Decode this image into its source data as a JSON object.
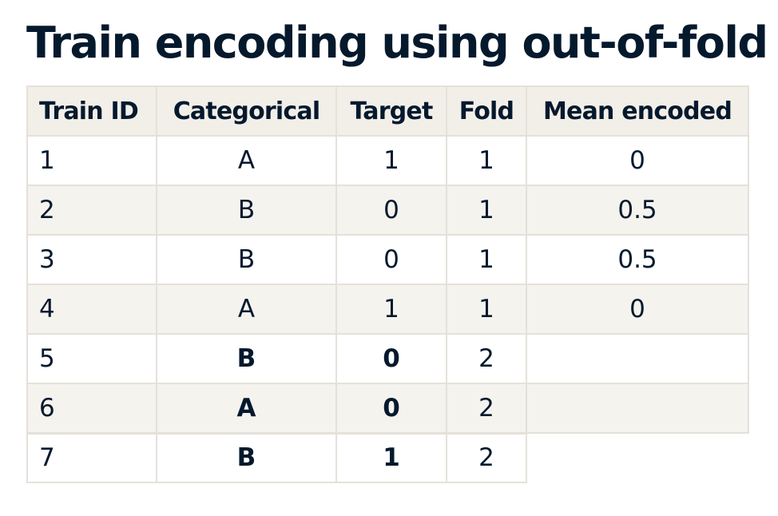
{
  "title": "Train encoding using out-of-fold",
  "table": {
    "headers": [
      "Train ID",
      "Categorical",
      "Target",
      "Fold",
      "Mean encoded"
    ],
    "rows": [
      {
        "train_id": "1",
        "categorical": "A",
        "target": "1",
        "fold": "1",
        "mean_encoded": "0"
      },
      {
        "train_id": "2",
        "categorical": "B",
        "target": "0",
        "fold": "1",
        "mean_encoded": "0.5"
      },
      {
        "train_id": "3",
        "categorical": "B",
        "target": "0",
        "fold": "1",
        "mean_encoded": "0.5"
      },
      {
        "train_id": "4",
        "categorical": "A",
        "target": "1",
        "fold": "1",
        "mean_encoded": "0"
      },
      {
        "train_id": "5",
        "categorical": "B",
        "target": "0",
        "fold": "2",
        "mean_encoded": ""
      },
      {
        "train_id": "6",
        "categorical": "A",
        "target": "0",
        "fold": "2",
        "mean_encoded": ""
      },
      {
        "train_id": "7",
        "categorical": "B",
        "target": "1",
        "fold": "2",
        "mean_encoded": ""
      }
    ],
    "highlighted_rows_bold": [
      "5",
      "6",
      "7"
    ]
  },
  "colors": {
    "text": "#05192d",
    "header_bg": "#f2efe9",
    "stripe_bg": "#f5f3ee",
    "border": "#e5e1da"
  }
}
